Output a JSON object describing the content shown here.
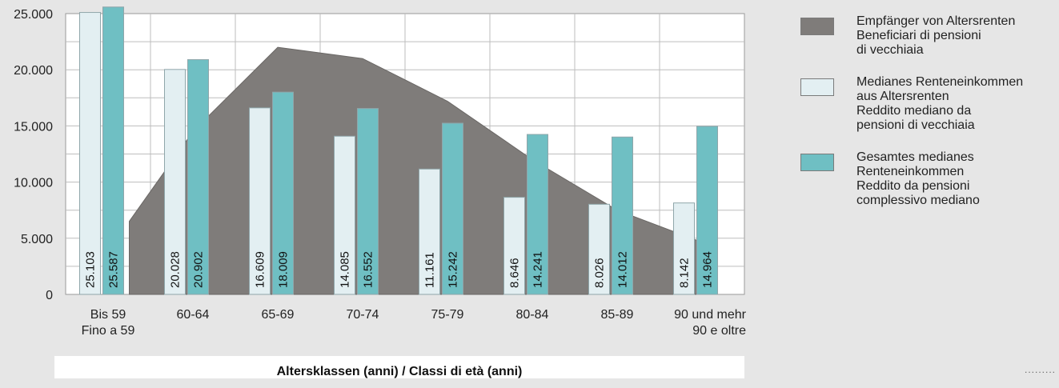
{
  "chart_data": {
    "type": "bar",
    "categories": [
      "Bis 59\nFino a 59",
      "60-64",
      "65-69",
      "70-74",
      "75-79",
      "80-84",
      "85-89",
      "90 und mehr\n90 e oltre"
    ],
    "series": [
      {
        "name": "Empfänger von Altersrenten\nBeneficiari di pensioni\ndi vecchiaia",
        "type": "area",
        "color": "#7f7c7a",
        "values": [
          6500,
          14500,
          22000,
          21000,
          17200,
          12000,
          7500,
          4500
        ]
      },
      {
        "name": "Medianes Renteneinkommen\naus Altersrenten\nReddito mediano da\npensioni di vecchiaia",
        "type": "bar",
        "color": "#e3eff2",
        "values": [
          25103,
          20028,
          16609,
          14085,
          11161,
          8646,
          8026,
          8142
        ],
        "labels": [
          "25.103",
          "20.028",
          "16.609",
          "14.085",
          "11.161",
          "8.646",
          "8.026",
          "8.142"
        ]
      },
      {
        "name": "Gesamtes medianes\nRenteneinkommen\nReddito da pensioni\ncomplessivo mediano",
        "type": "bar",
        "color": "#6fbfc3",
        "values": [
          25587,
          20902,
          18009,
          16552,
          15242,
          14241,
          14012,
          14964
        ],
        "labels": [
          "25.587",
          "20.902",
          "18.009",
          "16.552",
          "15.242",
          "14.241",
          "14.012",
          "14.964"
        ]
      }
    ],
    "y_ticks": [
      "0",
      "5.000",
      "10.000",
      "15.000",
      "20.000",
      "25.000"
    ],
    "ylim": [
      0,
      25000
    ],
    "xlabel": "Altersklassen (anni) / Classi di età (anni)",
    "ylabel": "",
    "grid": true,
    "legend_position": "right"
  },
  "footer": {
    "dots": "........."
  }
}
